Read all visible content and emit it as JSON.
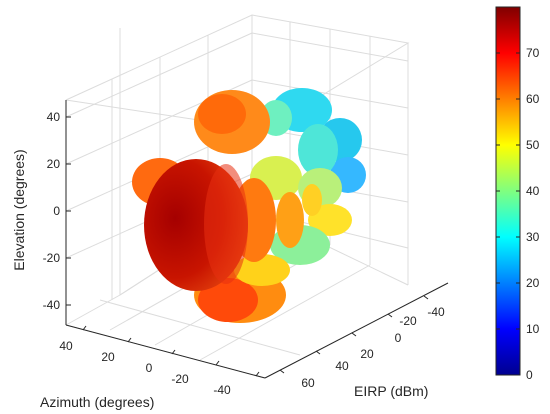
{
  "chart_data": {
    "type": "3d-surface",
    "xlabel": "EIRP (dBm)",
    "ylabel": "Azimuth (degrees)",
    "zlabel": "Elevation (degrees)",
    "x_ticks": [
      "-40",
      "-20",
      "0",
      "20",
      "40",
      "60"
    ],
    "y_ticks": [
      "40",
      "20",
      "0",
      "-20",
      "-40"
    ],
    "z_ticks": [
      "40",
      "20",
      "0",
      "-20",
      "-40"
    ],
    "colorbar_ticks": [
      "0",
      "10",
      "20",
      "30",
      "40",
      "50",
      "60",
      "70"
    ],
    "colorbar_range": [
      0,
      80
    ],
    "colormap": "jet",
    "lobes": [
      {
        "azimuth": -15,
        "elevation": 33,
        "eirp": 64
      },
      {
        "azimuth": -22,
        "elevation": 36,
        "eirp": 36
      },
      {
        "azimuth": -25,
        "elevation": 29,
        "eirp": 33
      },
      {
        "azimuth": -30,
        "elevation": 22,
        "eirp": 35
      },
      {
        "azimuth": 28,
        "elevation": 11,
        "eirp": 66
      },
      {
        "azimuth": 0,
        "elevation": -1,
        "eirp": 78
      },
      {
        "azimuth": -10,
        "elevation": 4,
        "eirp": 66
      },
      {
        "azimuth": -18,
        "elevation": 3,
        "eirp": 60
      },
      {
        "azimuth": -24,
        "elevation": 7,
        "eirp": 55
      },
      {
        "azimuth": -30,
        "elevation": 3,
        "eirp": 52
      },
      {
        "azimuth": -36,
        "elevation": 8,
        "eirp": 48
      },
      {
        "azimuth": -32,
        "elevation": 15,
        "eirp": 45
      },
      {
        "azimuth": -10,
        "elevation": -37,
        "eirp": 64
      },
      {
        "azimuth": 25,
        "elevation": -34,
        "eirp": 68
      }
    ]
  }
}
